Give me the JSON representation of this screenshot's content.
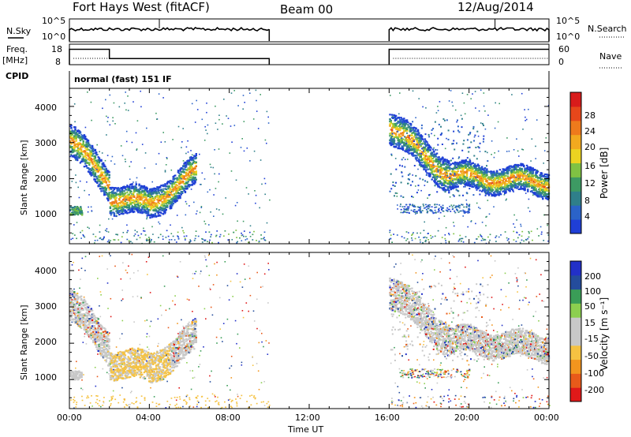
{
  "header": {
    "station": "Fort Hays West (fitACF)",
    "beam": "Beam 00",
    "date": "12/Aug/2014"
  },
  "left_labels": {
    "nsky": "N.Sky",
    "freq": "Freq.",
    "mhz": "[MHz]",
    "cpid": "CPID"
  },
  "right_labels": {
    "nsearch": "N.Search",
    "nave": "Nave"
  },
  "cpid_text": "normal (fast) 151 IF",
  "time_axis": {
    "label": "Time UT",
    "ticks": [
      "00:00",
      "04:00",
      "08:00",
      "12:00",
      "16:00",
      "20:00",
      "00:00"
    ]
  },
  "noise_axis": {
    "ticks": [
      "10^5",
      "10^0"
    ]
  },
  "freq_axis": {
    "ticks_left": [
      "18",
      "8"
    ],
    "ticks_right": [
      "60",
      "0"
    ]
  },
  "range_axis": {
    "label": "Slant Range [km]",
    "ticks": [
      "4000",
      "3000",
      "2000",
      "1000"
    ]
  },
  "colors": {
    "power_scale": [
      "#1f3fd6",
      "#2b63c8",
      "#2f7f8a",
      "#3d9a63",
      "#7fc243",
      "#ecd321",
      "#f2a91f",
      "#ee7a1c",
      "#e6471b",
      "#d81b1b"
    ],
    "velocity_scale": [
      "#e01919",
      "#e85a1a",
      "#f2951e",
      "#f5c242",
      "#c8c8c8",
      "#c8c8c8",
      "#8ccf4f",
      "#3a9d57",
      "#244c9c",
      "#2230c8"
    ],
    "ground_scatter": "#c8c8c8"
  },
  "chart_data": [
    {
      "type": "line",
      "title": "N.Sky / N.Search",
      "x": [
        "00:00",
        "10:00",
        "16:00",
        "24:00"
      ],
      "ylim": [
        "10^0",
        "10^5"
      ],
      "notes": "data gap 10:00-16:00"
    },
    {
      "type": "line",
      "title": "Freq. / Nave",
      "series": [
        {
          "name": "Freq.",
          "x": [
            "00:00",
            "02:00",
            "10:00",
            "16:00",
            "24:00"
          ],
          "values": [
            15.5,
            10.5,
            10.5,
            15.5,
            15.5
          ]
        },
        {
          "name": "Nave",
          "x": [
            "00:00",
            "10:00",
            "16:00",
            "24:00"
          ],
          "values": [
            20,
            20,
            20,
            20
          ]
        }
      ],
      "ylim": [
        8,
        18
      ]
    },
    {
      "type": "heatmap",
      "title": "Power [dB]",
      "xlabel": "Time UT",
      "ylabel": "Slant Range [km]",
      "xlim": [
        0,
        24
      ],
      "ylim": [
        200,
        4500
      ],
      "colorbar": {
        "label": "Power [dB]",
        "ticks": [
          28,
          24,
          20,
          16,
          12,
          8,
          4
        ]
      },
      "bands": [
        {
          "time": [
            0,
            2
          ],
          "range": [
            3100,
            1800
          ],
          "peak_db": 24
        },
        {
          "time": [
            2,
            6.3
          ],
          "range": [
            1500,
            2400
          ],
          "peak_db": 20
        },
        {
          "time": [
            16,
            24
          ],
          "range": [
            3500,
            1800
          ],
          "peak_db": 24
        }
      ]
    },
    {
      "type": "heatmap",
      "title": "Velocity [m s^-1]",
      "xlabel": "Time UT",
      "ylabel": "Slant Range [km]",
      "xlim": [
        0,
        24
      ],
      "ylim": [
        200,
        4500
      ],
      "colorbar": {
        "label": "Velocity [m s^-1]",
        "ticks": [
          200,
          100,
          50,
          15,
          -15,
          -50,
          -100,
          -200
        ]
      }
    }
  ]
}
